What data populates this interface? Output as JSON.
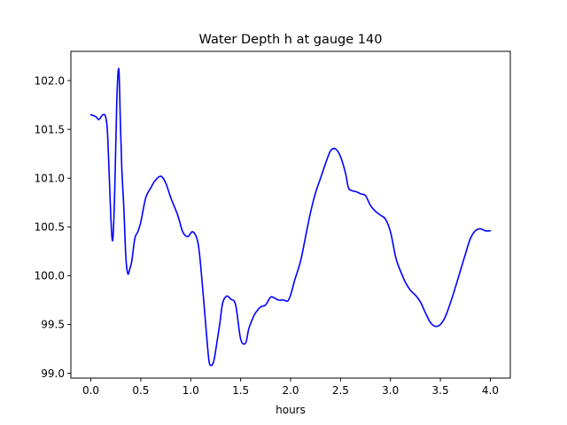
{
  "chart_data": {
    "type": "line",
    "title": "Water Depth h at gauge 140",
    "xlabel": "hours",
    "ylabel": "",
    "xlim": [
      -0.2,
      4.2
    ],
    "ylim": [
      98.95,
      102.3
    ],
    "xticks": [
      0.0,
      0.5,
      1.0,
      1.5,
      2.0,
      2.5,
      3.0,
      3.5,
      4.0
    ],
    "xtick_labels": [
      "0.0",
      "0.5",
      "1.0",
      "1.5",
      "2.0",
      "2.5",
      "3.0",
      "3.5",
      "4.0"
    ],
    "yticks": [
      99.0,
      99.5,
      100.0,
      100.5,
      101.0,
      101.5,
      102.0
    ],
    "ytick_labels": [
      "99.0",
      "99.5",
      "100.0",
      "100.5",
      "101.0",
      "101.5",
      "102.0"
    ],
    "grid": false,
    "series": [
      {
        "color": "#0000ff",
        "x": [
          0.0,
          0.05,
          0.08,
          0.12,
          0.15,
          0.17,
          0.2,
          0.22,
          0.24,
          0.26,
          0.28,
          0.295,
          0.31,
          0.33,
          0.35,
          0.37,
          0.39,
          0.41,
          0.44,
          0.47,
          0.5,
          0.55,
          0.6,
          0.64,
          0.7,
          0.75,
          0.8,
          0.87,
          0.92,
          0.97,
          1.02,
          1.07,
          1.1,
          1.15,
          1.18,
          1.2,
          1.23,
          1.26,
          1.29,
          1.32,
          1.36,
          1.4,
          1.45,
          1.5,
          1.55,
          1.58,
          1.62,
          1.65,
          1.7,
          1.75,
          1.8,
          1.84,
          1.88,
          1.93,
          1.97,
          2.0,
          2.04,
          2.1,
          2.15,
          2.2,
          2.25,
          2.3,
          2.35,
          2.4,
          2.45,
          2.5,
          2.55,
          2.58,
          2.62,
          2.66,
          2.7,
          2.75,
          2.8,
          2.85,
          2.9,
          2.95,
          3.0,
          3.05,
          3.08,
          3.12,
          3.15,
          3.2,
          3.25,
          3.3,
          3.35,
          3.4,
          3.45,
          3.5,
          3.55,
          3.6,
          3.65,
          3.7,
          3.75,
          3.8,
          3.85,
          3.9,
          3.95,
          4.0
        ],
        "y": [
          101.65,
          101.63,
          101.6,
          101.65,
          101.62,
          101.4,
          100.6,
          100.37,
          100.9,
          101.8,
          102.12,
          101.6,
          101.1,
          100.7,
          100.2,
          100.02,
          100.07,
          100.15,
          100.38,
          100.45,
          100.55,
          100.8,
          100.9,
          100.97,
          101.02,
          100.95,
          100.8,
          100.62,
          100.45,
          100.4,
          100.45,
          100.35,
          100.1,
          99.5,
          99.15,
          99.08,
          99.12,
          99.3,
          99.5,
          99.72,
          99.79,
          99.76,
          99.7,
          99.35,
          99.31,
          99.45,
          99.56,
          99.62,
          99.68,
          99.7,
          99.78,
          99.77,
          99.75,
          99.75,
          99.74,
          99.8,
          99.95,
          100.15,
          100.4,
          100.65,
          100.85,
          101.0,
          101.15,
          101.28,
          101.3,
          101.22,
          101.05,
          100.9,
          100.87,
          100.86,
          100.84,
          100.82,
          100.72,
          100.66,
          100.62,
          100.58,
          100.45,
          100.2,
          100.1,
          100.0,
          99.93,
          99.85,
          99.8,
          99.73,
          99.62,
          99.52,
          99.48,
          99.5,
          99.58,
          99.72,
          99.88,
          100.05,
          100.22,
          100.38,
          100.46,
          100.48,
          100.46,
          100.46
        ]
      }
    ]
  }
}
